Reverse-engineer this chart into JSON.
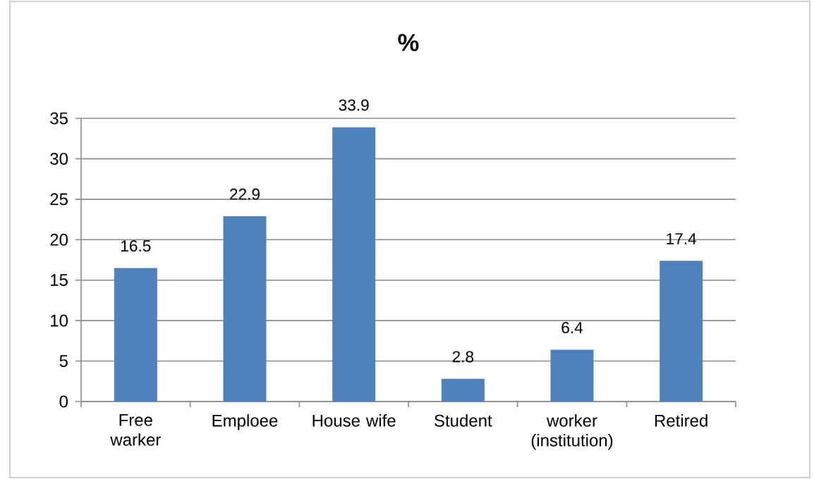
{
  "chart_data": {
    "type": "bar",
    "title": "%",
    "categories": [
      "Free warker",
      "Emploee",
      "House wife",
      "Student",
      "worker (institution)",
      "Retired"
    ],
    "values": [
      16.5,
      22.9,
      33.9,
      2.8,
      6.4,
      17.4
    ],
    "color": "#4f81bd",
    "ylim": [
      0,
      35
    ],
    "yticks": [
      0,
      5,
      10,
      15,
      20,
      25,
      30,
      35
    ],
    "grid": "y",
    "data_labels": true
  }
}
